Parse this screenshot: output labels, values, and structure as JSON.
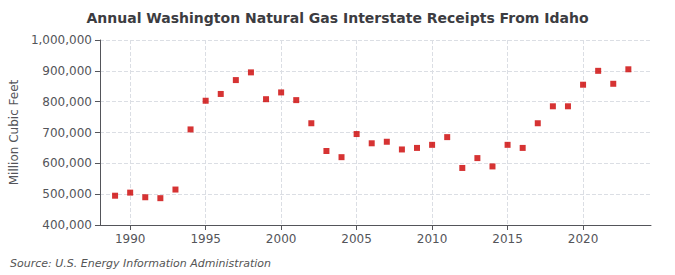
{
  "chart_data": {
    "type": "scatter",
    "title": "Annual Washington Natural Gas Interstate Receipts From Idaho",
    "ylabel": "Million Cubic Feet",
    "annotation": "Source: U.S. Energy Information Administration",
    "x": [
      1989,
      1990,
      1991,
      1992,
      1993,
      1994,
      1995,
      1996,
      1997,
      1998,
      1999,
      2000,
      2001,
      2002,
      2003,
      2004,
      2005,
      2006,
      2007,
      2008,
      2009,
      2010,
      2011,
      2012,
      2013,
      2014,
      2015,
      2016,
      2017,
      2018,
      2019,
      2020,
      2021,
      2022,
      2023
    ],
    "values": [
      495000,
      505000,
      490000,
      487000,
      515000,
      710000,
      803000,
      825000,
      870000,
      895000,
      808000,
      830000,
      805000,
      730000,
      640000,
      620000,
      695000,
      665000,
      670000,
      645000,
      650000,
      660000,
      685000,
      585000,
      617000,
      590000,
      660000,
      650000,
      730000,
      785000,
      785000,
      855000,
      900000,
      858000,
      905000
    ],
    "color": "#cc0000",
    "marker": "square",
    "xlim": [
      1988.0,
      2024.5
    ],
    "xticks": [
      1990,
      1995,
      2000,
      2005,
      2010,
      2015,
      2020
    ],
    "ylim": [
      400000,
      1000000
    ],
    "yticks": [
      {
        "value": 400000,
        "label": "400,000"
      },
      {
        "value": 500000,
        "label": "500,000"
      },
      {
        "value": 600000,
        "label": "600,000"
      },
      {
        "value": 700000,
        "label": "700,000"
      },
      {
        "value": 800000,
        "label": "800,000"
      },
      {
        "value": 900000,
        "label": "900,000"
      },
      {
        "value": 1000000,
        "label": "1,000,000"
      }
    ],
    "grid": true
  }
}
